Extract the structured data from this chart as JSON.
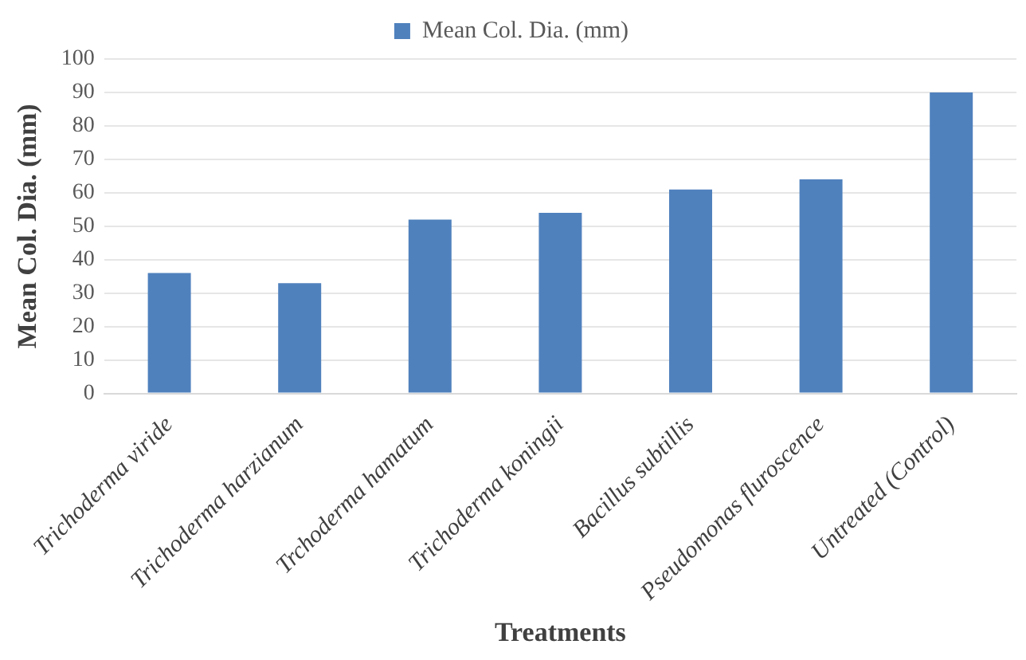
{
  "chart_data": {
    "type": "bar",
    "categories": [
      "Trichoderma viride",
      "Trichoderma harzianum",
      "Trchoderma hamatum",
      "Trichoderma koningii",
      "Bacillus subtillis",
      "Pseudomonas fluroscence",
      "Untreated (Control)"
    ],
    "series": [
      {
        "name": "Mean Col. Dia. (mm)",
        "color": "#4f81bd",
        "values": [
          36,
          33,
          52,
          54,
          61,
          64,
          90
        ]
      }
    ],
    "xlabel": "Treatments",
    "ylabel": "Mean Col. Dia. (mm)",
    "ylim": [
      0,
      100
    ],
    "yticks": [
      0,
      10,
      20,
      30,
      40,
      50,
      60,
      70,
      80,
      90,
      100
    ],
    "grid": "y",
    "legend": "top"
  }
}
